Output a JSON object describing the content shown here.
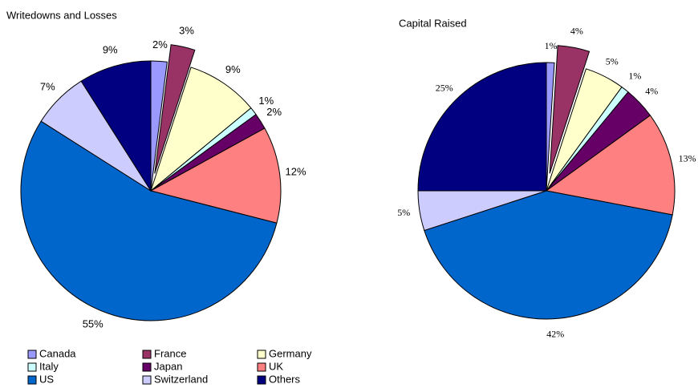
{
  "chart_data": [
    {
      "type": "pie",
      "title": "Writedowns and Losses",
      "categories": [
        "Canada",
        "France",
        "Germany",
        "Italy",
        "Japan",
        "UK",
        "US",
        "Switzerland",
        "Others"
      ],
      "colors": [
        "#9999ff",
        "#993366",
        "#ffffcc",
        "#ccffff",
        "#660066",
        "#ff8080",
        "#0066cc",
        "#ccccff",
        "#000080"
      ],
      "values": [
        2,
        3,
        9,
        1,
        2,
        12,
        55,
        7,
        9
      ],
      "value_labels": [
        "2%",
        "3%",
        "9%",
        "1%",
        "2%",
        "12%",
        "55%",
        "7%",
        "9%"
      ]
    },
    {
      "type": "pie",
      "title": "Capital Raised",
      "values": [
        1,
        4,
        5,
        1,
        4,
        13,
        42,
        5,
        25
      ],
      "value_labels": [
        "1%",
        "4%",
        "5%",
        "1%",
        "4%",
        "13%",
        "42%",
        "5%",
        "25%"
      ]
    }
  ]
}
